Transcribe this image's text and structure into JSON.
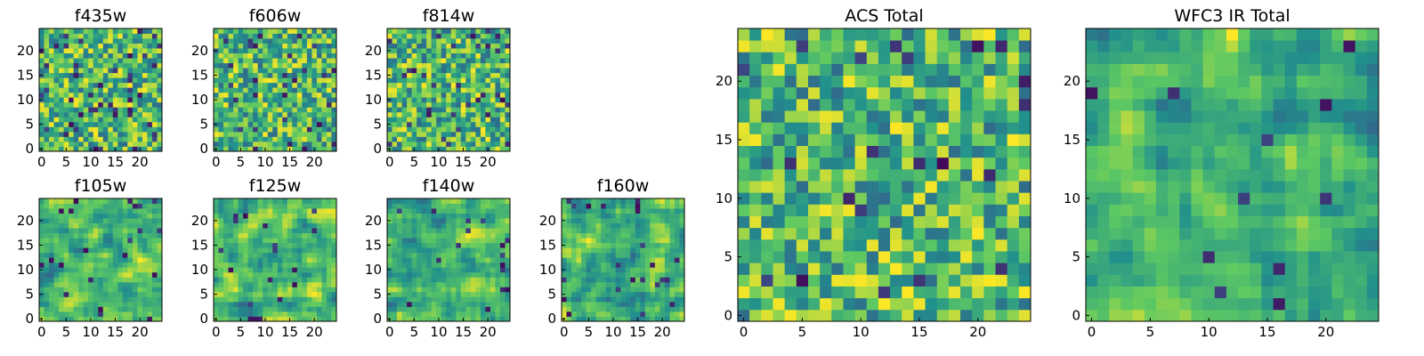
{
  "figure": {
    "colormap": [
      "#440154",
      "#3b528b",
      "#21918c",
      "#5ec962",
      "#fde725"
    ]
  },
  "chart_data": [
    {
      "type": "heatmap",
      "title": "f435w",
      "grid_size": 25,
      "xlim": [
        0,
        24
      ],
      "ylim": [
        0,
        24
      ],
      "xticks": [
        0,
        5,
        10,
        15,
        20
      ],
      "yticks": [
        0,
        5,
        10,
        15,
        20
      ],
      "xtick_labels": [
        "0",
        "5",
        "10",
        "15",
        "20"
      ],
      "ytick_labels": [
        "0",
        "5",
        "10",
        "15",
        "20"
      ],
      "seed": 435,
      "smoothing": 0,
      "dark_fraction": 0.06
    },
    {
      "type": "heatmap",
      "title": "f606w",
      "grid_size": 25,
      "xlim": [
        0,
        24
      ],
      "ylim": [
        0,
        24
      ],
      "xticks": [
        0,
        5,
        10,
        15,
        20
      ],
      "yticks": [
        0,
        5,
        10,
        15,
        20
      ],
      "xtick_labels": [
        "0",
        "5",
        "10",
        "15",
        "20"
      ],
      "ytick_labels": [
        "0",
        "5",
        "10",
        "15",
        "20"
      ],
      "seed": 606,
      "smoothing": 0,
      "dark_fraction": 0.05
    },
    {
      "type": "heatmap",
      "title": "f814w",
      "grid_size": 25,
      "xlim": [
        0,
        24
      ],
      "ylim": [
        0,
        24
      ],
      "xticks": [
        0,
        5,
        10,
        15,
        20
      ],
      "yticks": [
        0,
        5,
        10,
        15,
        20
      ],
      "xtick_labels": [
        "0",
        "5",
        "10",
        "15",
        "20"
      ],
      "ytick_labels": [
        "0",
        "5",
        "10",
        "15",
        "20"
      ],
      "seed": 814,
      "smoothing": 0,
      "dark_fraction": 0.05
    },
    {
      "type": "heatmap",
      "title": "f105w",
      "grid_size": 25,
      "xlim": [
        0,
        24
      ],
      "ylim": [
        0,
        24
      ],
      "xticks": [
        0,
        5,
        10,
        15,
        20
      ],
      "yticks": [
        0,
        5,
        10,
        15,
        20
      ],
      "xtick_labels": [
        "0",
        "5",
        "10",
        "15",
        "20"
      ],
      "ytick_labels": [
        "0",
        "5",
        "10",
        "15",
        "20"
      ],
      "seed": 105,
      "smoothing": 1,
      "dark_fraction": 0.04
    },
    {
      "type": "heatmap",
      "title": "f125w",
      "grid_size": 25,
      "xlim": [
        0,
        24
      ],
      "ylim": [
        0,
        24
      ],
      "xticks": [
        0,
        5,
        10,
        15,
        20
      ],
      "yticks": [
        0,
        5,
        10,
        15,
        20
      ],
      "xtick_labels": [
        "0",
        "5",
        "10",
        "15",
        "20"
      ],
      "ytick_labels": [
        "0",
        "5",
        "10",
        "15",
        "20"
      ],
      "seed": 125,
      "smoothing": 1,
      "dark_fraction": 0.04
    },
    {
      "type": "heatmap",
      "title": "f140w",
      "grid_size": 25,
      "xlim": [
        0,
        24
      ],
      "ylim": [
        0,
        24
      ],
      "xticks": [
        0,
        5,
        10,
        15,
        20
      ],
      "yticks": [
        0,
        5,
        10,
        15,
        20
      ],
      "xtick_labels": [
        "0",
        "5",
        "10",
        "15",
        "20"
      ],
      "ytick_labels": [
        "0",
        "5",
        "10",
        "15",
        "20"
      ],
      "seed": 140,
      "smoothing": 1,
      "dark_fraction": 0.04
    },
    {
      "type": "heatmap",
      "title": "f160w",
      "grid_size": 25,
      "xlim": [
        0,
        24
      ],
      "ylim": [
        0,
        24
      ],
      "xticks": [
        0,
        5,
        10,
        15,
        20
      ],
      "yticks": [
        0,
        5,
        10,
        15,
        20
      ],
      "xtick_labels": [
        "0",
        "5",
        "10",
        "15",
        "20"
      ],
      "ytick_labels": [
        "0",
        "5",
        "10",
        "15",
        "20"
      ],
      "seed": 160,
      "smoothing": 1,
      "dark_fraction": 0.04
    },
    {
      "type": "heatmap",
      "title": "ACS Total",
      "grid_size": 25,
      "xlim": [
        0,
        24
      ],
      "ylim": [
        0,
        24
      ],
      "xticks": [
        0,
        5,
        10,
        15,
        20
      ],
      "yticks": [
        0,
        5,
        10,
        15,
        20
      ],
      "xtick_labels": [
        "0",
        "5",
        "10",
        "15",
        "20"
      ],
      "ytick_labels": [
        "0",
        "5",
        "10",
        "15",
        "20"
      ],
      "seed": 2001,
      "smoothing": 0,
      "dark_fraction": 0.02
    },
    {
      "type": "heatmap",
      "title": "WFC3 IR Total",
      "grid_size": 25,
      "xlim": [
        0,
        24
      ],
      "ylim": [
        0,
        24
      ],
      "xticks": [
        0,
        5,
        10,
        15,
        20
      ],
      "yticks": [
        0,
        5,
        10,
        15,
        20
      ],
      "xtick_labels": [
        "0",
        "5",
        "10",
        "15",
        "20"
      ],
      "ytick_labels": [
        "0",
        "5",
        "10",
        "15",
        "20"
      ],
      "seed": 2002,
      "smoothing": 1,
      "dark_fraction": 0.02
    }
  ]
}
